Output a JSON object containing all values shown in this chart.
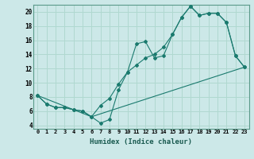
{
  "xlabel": "Humidex (Indice chaleur)",
  "bg_color": "#cce8e8",
  "grid_color": "#b0d8d0",
  "line_color": "#1a7a6e",
  "xlim": [
    -0.5,
    23.5
  ],
  "ylim": [
    3.5,
    21.0
  ],
  "xticks": [
    0,
    1,
    2,
    3,
    4,
    5,
    6,
    7,
    8,
    9,
    10,
    11,
    12,
    13,
    14,
    15,
    16,
    17,
    18,
    19,
    20,
    21,
    22,
    23
  ],
  "yticks": [
    4,
    6,
    8,
    10,
    12,
    14,
    16,
    18,
    20
  ],
  "line1_x": [
    0,
    1,
    2,
    3,
    4,
    5,
    6,
    7,
    8,
    9,
    10,
    11,
    12,
    13,
    14,
    15,
    16,
    17,
    18,
    19,
    20,
    21,
    22,
    23
  ],
  "line1_y": [
    8.2,
    7.0,
    6.5,
    6.5,
    6.2,
    6.0,
    5.2,
    4.3,
    4.8,
    9.0,
    11.5,
    15.5,
    15.8,
    13.5,
    13.8,
    16.8,
    19.2,
    20.8,
    19.5,
    19.8,
    19.8,
    18.5,
    13.8,
    12.2
  ],
  "line2_x": [
    0,
    1,
    2,
    3,
    4,
    5,
    6,
    7,
    8,
    9,
    10,
    11,
    12,
    13,
    14,
    15,
    16,
    17,
    18,
    19,
    20,
    21,
    22,
    23
  ],
  "line2_y": [
    8.2,
    7.0,
    6.5,
    6.5,
    6.2,
    6.0,
    5.2,
    6.8,
    7.8,
    9.8,
    11.5,
    12.5,
    13.5,
    14.0,
    15.0,
    16.8,
    19.2,
    20.8,
    19.5,
    19.8,
    19.8,
    18.5,
    13.8,
    12.2
  ],
  "line3_x": [
    0,
    6,
    23
  ],
  "line3_y": [
    8.2,
    5.2,
    12.2
  ]
}
